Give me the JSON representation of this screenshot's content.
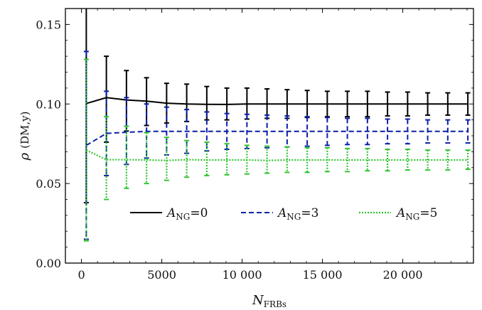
{
  "chart_data": {
    "type": "line",
    "title": "",
    "xlabel": "N",
    "xlabel_sub": "FRBs",
    "ylabel": "ρ",
    "ylabel_suffix": "(DM,y)",
    "xlim": [
      -1000,
      24400
    ],
    "ylim": [
      0.0,
      0.16
    ],
    "xticks": [
      0,
      5000,
      10000,
      15000,
      20000
    ],
    "xtick_labels": [
      "0",
      "5000",
      "10 000",
      "15 000",
      "20 000"
    ],
    "yticks": [
      0.0,
      0.05,
      0.1,
      0.15
    ],
    "ytick_labels": [
      "0.00",
      "0.05",
      "0.10",
      "0.15"
    ],
    "grid": false,
    "legend_position": "bottom-center",
    "x": [
      300,
      1550,
      2800,
      4050,
      5300,
      6550,
      7800,
      9050,
      10300,
      11550,
      12800,
      14050,
      15300,
      16550,
      17800,
      19050,
      20300,
      21550,
      22800,
      24050
    ],
    "series": [
      {
        "name": "A=0",
        "name_italic": "A",
        "name_sub": "NG",
        "name_suffix": "=0",
        "color": "#000000",
        "dash": "solid",
        "values": [
          0.1003,
          0.104,
          0.1025,
          0.1018,
          0.1005,
          0.1,
          0.0998,
          0.0997,
          0.1,
          0.1,
          0.1,
          0.1,
          0.1,
          0.1,
          0.1,
          0.1,
          0.1,
          0.1,
          0.1,
          0.1
        ],
        "upper": [
          0.165,
          0.13,
          0.121,
          0.1165,
          0.113,
          0.1125,
          0.111,
          0.11,
          0.11,
          0.1095,
          0.109,
          0.1085,
          0.108,
          0.108,
          0.108,
          0.1075,
          0.1075,
          0.107,
          0.107,
          0.107
        ],
        "lower": [
          0.038,
          0.076,
          0.083,
          0.0865,
          0.088,
          0.089,
          0.09,
          0.09,
          0.0905,
          0.091,
          0.091,
          0.0915,
          0.092,
          0.092,
          0.092,
          0.0925,
          0.0925,
          0.093,
          0.093,
          0.093
        ]
      },
      {
        "name": "A=3",
        "name_italic": "A",
        "name_sub": "NG",
        "name_suffix": "=3",
        "color": "#0a1fa8",
        "dash": "dashed",
        "values": [
          0.074,
          0.0815,
          0.0822,
          0.0828,
          0.0828,
          0.0828,
          0.0828,
          0.0828,
          0.0828,
          0.0828,
          0.0828,
          0.0828,
          0.0828,
          0.0828,
          0.0828,
          0.0828,
          0.0828,
          0.0828,
          0.0828,
          0.0828
        ],
        "upper": [
          0.133,
          0.108,
          0.104,
          0.1,
          0.098,
          0.0965,
          0.095,
          0.094,
          0.0935,
          0.093,
          0.0925,
          0.092,
          0.0915,
          0.091,
          0.091,
          0.0905,
          0.0905,
          0.09,
          0.09,
          0.09
        ],
        "lower": [
          0.015,
          0.055,
          0.062,
          0.066,
          0.068,
          0.069,
          0.0705,
          0.0715,
          0.072,
          0.0725,
          0.073,
          0.0735,
          0.074,
          0.0745,
          0.0745,
          0.075,
          0.075,
          0.0755,
          0.0755,
          0.0755
        ]
      },
      {
        "name": "A=5",
        "name_italic": "A",
        "name_sub": "NG",
        "name_suffix": "=5",
        "color": "#2ec42e",
        "dash": "dotted",
        "values": [
          0.071,
          0.065,
          0.065,
          0.0648,
          0.0645,
          0.065,
          0.0648,
          0.0648,
          0.0648,
          0.0645,
          0.0648,
          0.0648,
          0.0648,
          0.0648,
          0.0648,
          0.0648,
          0.0648,
          0.0648,
          0.0648,
          0.0648
        ],
        "upper": [
          0.128,
          0.092,
          0.086,
          0.082,
          0.079,
          0.077,
          0.076,
          0.075,
          0.074,
          0.0735,
          0.073,
          0.0725,
          0.0725,
          0.072,
          0.072,
          0.0715,
          0.0715,
          0.071,
          0.071,
          0.071
        ],
        "lower": [
          0.014,
          0.04,
          0.047,
          0.05,
          0.052,
          0.054,
          0.055,
          0.0555,
          0.056,
          0.0565,
          0.057,
          0.057,
          0.0575,
          0.0575,
          0.058,
          0.058,
          0.0585,
          0.0585,
          0.0585,
          0.059
        ]
      }
    ]
  }
}
